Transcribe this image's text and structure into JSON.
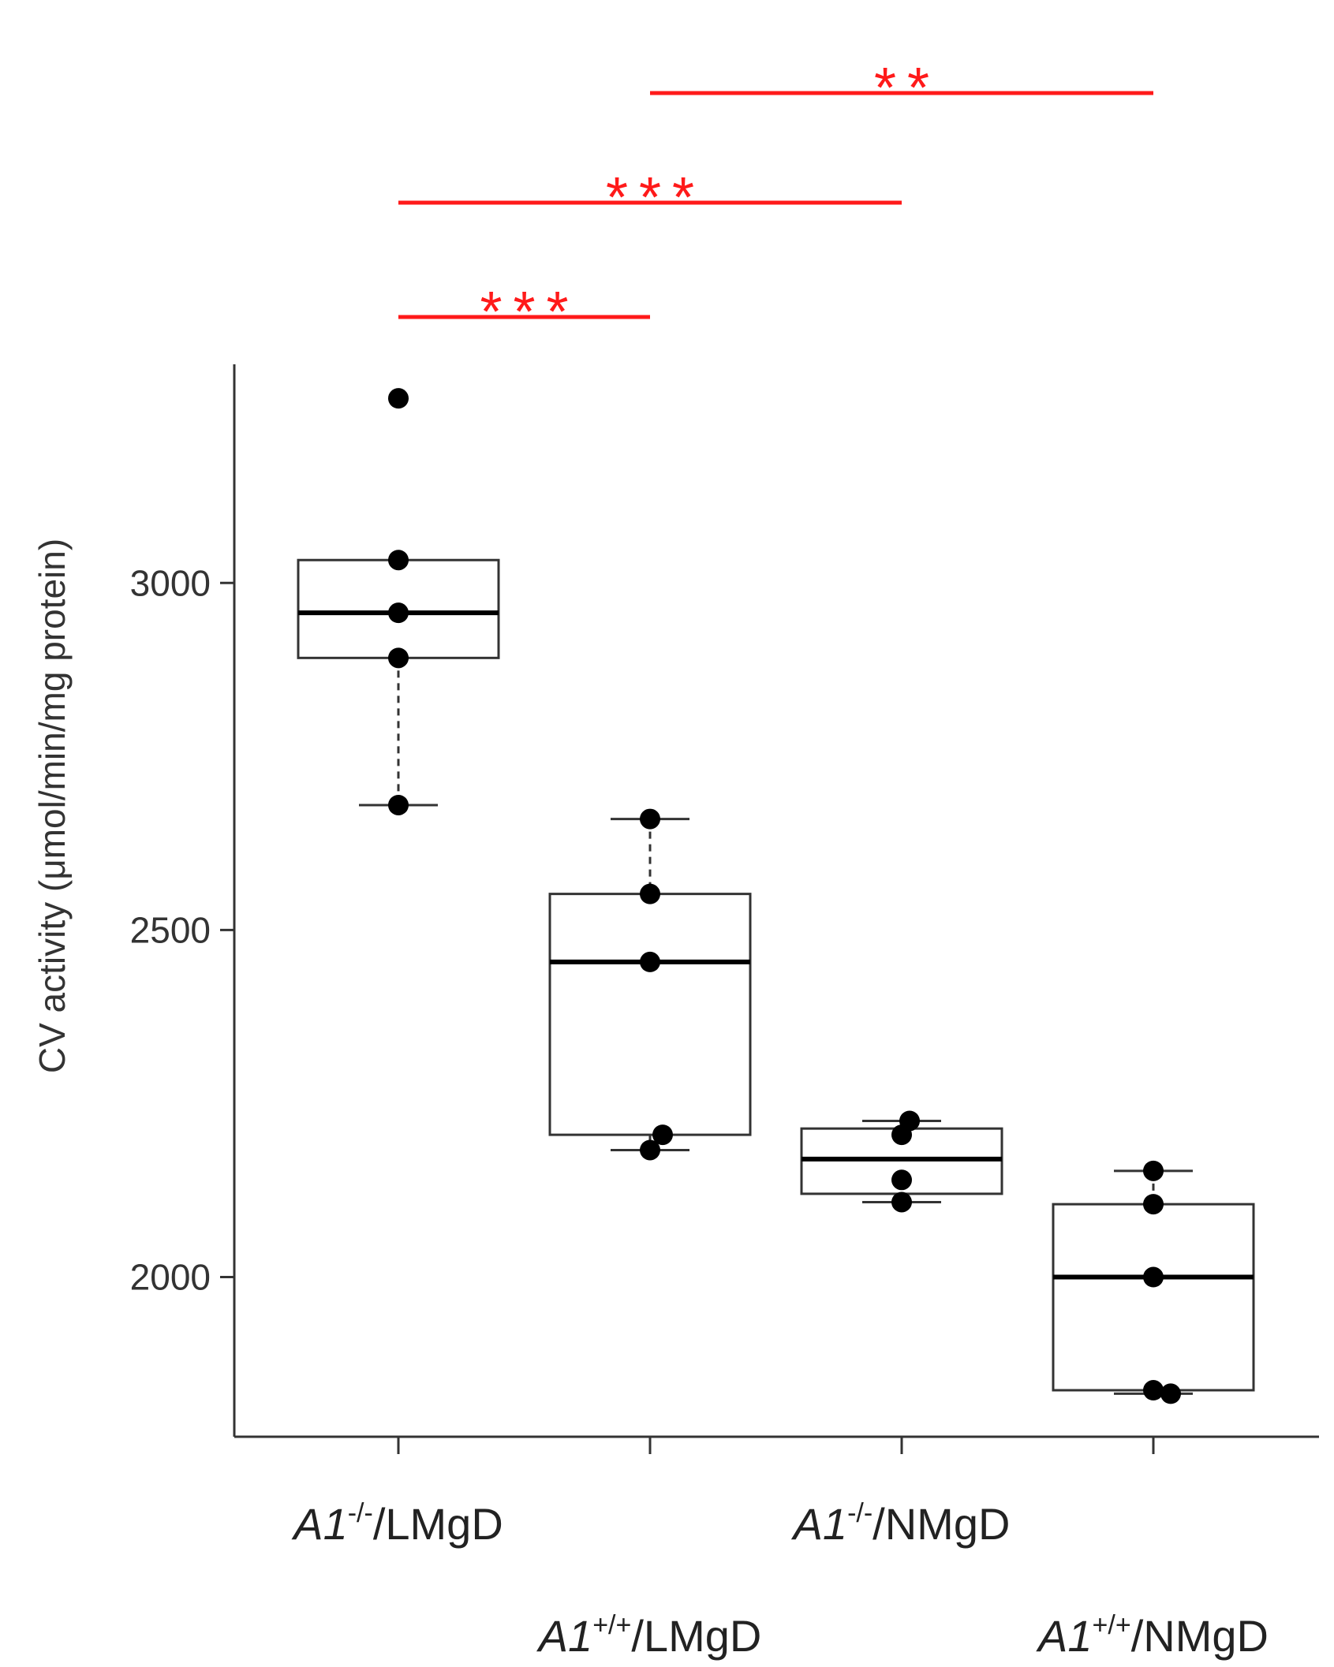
{
  "chart_data": {
    "type": "box",
    "ylabel": "CV activity (μmol/min/mg protein)",
    "xlabel": "",
    "ylim": [
      1770,
      3315
    ],
    "yticks": [
      2000,
      2500,
      3000
    ],
    "ytick_labels": [
      "2000",
      "2500",
      "3000"
    ],
    "categories": [
      {
        "gene": "A1",
        "superscript": "-/-",
        "diet": "/LMgD"
      },
      {
        "gene": "A1",
        "superscript": "+/+",
        "diet": "/LMgD"
      },
      {
        "gene": "A1",
        "superscript": "-/-",
        "diet": "/NMgD"
      },
      {
        "gene": "A1",
        "superscript": "+/+",
        "diet": "/NMgD"
      }
    ],
    "boxes": [
      {
        "whisker_low": 2680,
        "q1": 2892,
        "median": 2957,
        "q3": 3033,
        "whisker_high": 3033,
        "points": [
          3266,
          3033,
          2957,
          2892,
          2680
        ]
      },
      {
        "whisker_low": 2183,
        "q1": 2205,
        "median": 2454,
        "q3": 2552,
        "whisker_high": 2660,
        "points": [
          2660,
          2552,
          2454,
          2205,
          2183
        ]
      },
      {
        "whisker_low": 2108,
        "q1": 2120,
        "median": 2170,
        "q3": 2214,
        "whisker_high": 2225,
        "points": [
          2225,
          2205,
          2140,
          2108
        ]
      },
      {
        "whisker_low": 1832,
        "q1": 1837,
        "median": 2000,
        "q3": 2105,
        "whisker_high": 2153,
        "points": [
          2153,
          2105,
          2000,
          1837,
          1832
        ]
      }
    ],
    "significance": [
      {
        "from": 0,
        "to": 1,
        "label": "***"
      },
      {
        "from": 0,
        "to": 2,
        "label": "***"
      },
      {
        "from": 1,
        "to": 3,
        "label": "**"
      }
    ],
    "colors": {
      "box": "#333333",
      "median": "#000000",
      "point": "#000000",
      "significance": "#ff1a1a",
      "axis": "#333333"
    }
  }
}
